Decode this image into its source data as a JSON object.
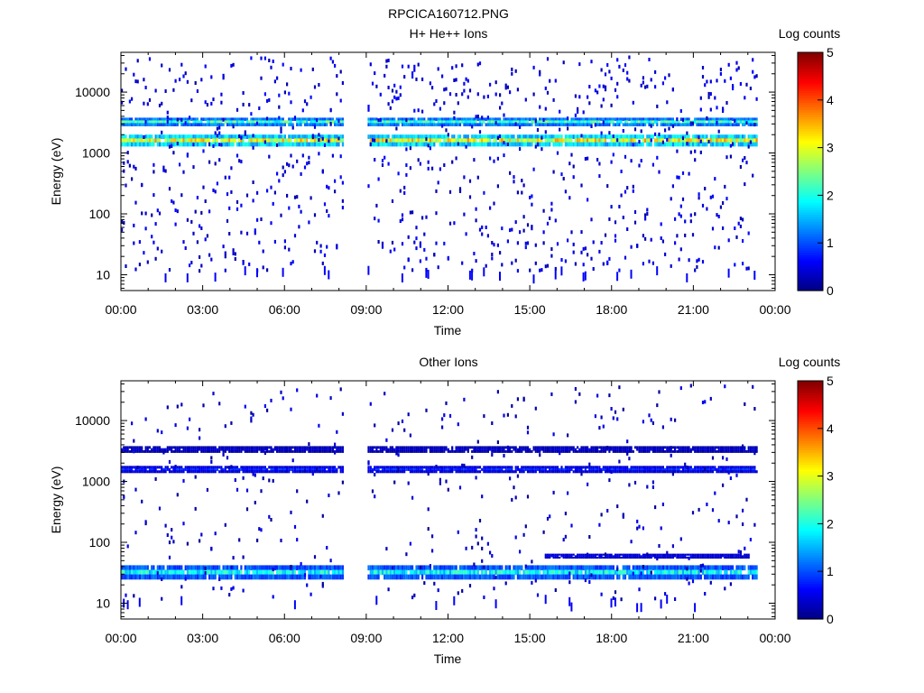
{
  "figure": {
    "title": "RPCICA160712.PNG"
  },
  "colorbar": {
    "label": "Log counts",
    "range": [
      0,
      5
    ],
    "ticks": [
      "0",
      "1",
      "2",
      "3",
      "4",
      "5"
    ],
    "colormap": "jet"
  },
  "chart_data": [
    {
      "id": "top",
      "type": "heatmap",
      "title": "H+ He++ Ions",
      "xlabel": "Time",
      "ylabel": "Energy (eV)",
      "x_ticks": [
        "00:00",
        "03:00",
        "06:00",
        "09:00",
        "12:00",
        "15:00",
        "18:00",
        "21:00",
        "00:00"
      ],
      "x_range_hours": [
        0,
        24
      ],
      "y_scale": "log",
      "y_range": [
        5.5,
        45000
      ],
      "y_ticks": [
        10,
        100,
        1000,
        10000
      ],
      "y_tick_labels": [
        "10",
        "100",
        "1000",
        "10000"
      ],
      "data_gap_hours": [
        8.15,
        9.0
      ],
      "data_end_hours": 23.3,
      "bands": [
        {
          "energy_from": 1300,
          "energy_to": 2000,
          "log_counts": 3.1,
          "description": "strong band ~1500 eV"
        },
        {
          "energy_from": 2800,
          "energy_to": 3800,
          "log_counts": 2.2,
          "description": "band ~3300 eV"
        }
      ],
      "background_log_counts": 0.2
    },
    {
      "id": "bottom",
      "type": "heatmap",
      "title": "Other Ions",
      "xlabel": "Time",
      "ylabel": "Energy (eV)",
      "x_ticks": [
        "00:00",
        "03:00",
        "06:00",
        "09:00",
        "12:00",
        "15:00",
        "18:00",
        "21:00",
        "00:00"
      ],
      "x_range_hours": [
        0,
        24
      ],
      "y_scale": "log",
      "y_range": [
        5.5,
        45000
      ],
      "y_ticks": [
        10,
        100,
        1000,
        10000
      ],
      "y_tick_labels": [
        "10",
        "100",
        "1000",
        "10000"
      ],
      "data_gap_hours": [
        8.15,
        9.0
      ],
      "data_end_hours": 23.3,
      "bands": [
        {
          "energy_from": 25,
          "energy_to": 42,
          "log_counts": 1.9,
          "description": "low energy band ~30 eV"
        },
        {
          "energy_from": 1400,
          "energy_to": 1800,
          "log_counts": 0.8,
          "description": "band ~1600 eV"
        },
        {
          "energy_from": 3000,
          "energy_to": 3800,
          "log_counts": 0.4,
          "description": "weak band ~3300 eV"
        },
        {
          "energy_from": 55,
          "energy_to": 65,
          "log_counts": 0.6,
          "hours_from": 15.5,
          "hours_to": 23.0,
          "description": "band ~60 eV after 15:30"
        }
      ],
      "background_log_counts": 0.1
    }
  ]
}
